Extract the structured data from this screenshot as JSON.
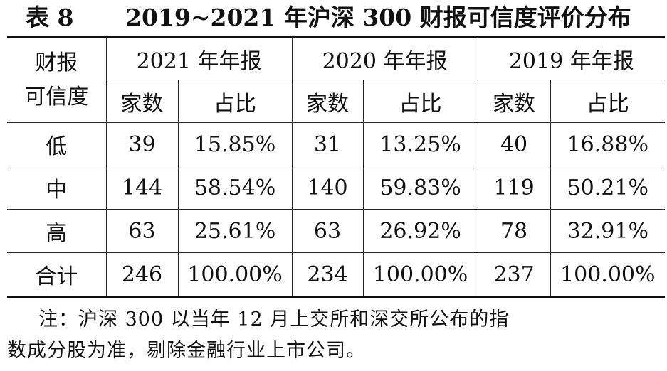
{
  "title": {
    "number": "表 8",
    "text": "2019~2021 年沪深 300 财报可信度评价分布"
  },
  "table": {
    "row_header": [
      "财报",
      "可信度"
    ],
    "year_headers": [
      "2021 年年报",
      "2020 年年报",
      "2019 年年报"
    ],
    "sub_headers": [
      "家数",
      "占比",
      "家数",
      "占比",
      "家数",
      "占比"
    ],
    "rows": [
      {
        "label": "低",
        "cells": [
          "39",
          "15.85%",
          "31",
          "13.25%",
          "40",
          "16.88%"
        ]
      },
      {
        "label": "中",
        "cells": [
          "144",
          "58.54%",
          "140",
          "59.83%",
          "119",
          "50.21%"
        ]
      },
      {
        "label": "高",
        "cells": [
          "63",
          "25.61%",
          "63",
          "26.92%",
          "78",
          "32.91%"
        ]
      },
      {
        "label": "合计",
        "cells": [
          "246",
          "100.00%",
          "234",
          "100.00%",
          "237",
          "100.00%"
        ]
      }
    ]
  },
  "note": {
    "line1": "注：沪深 300 以当年 12 月上交所和深交所公布的指",
    "line2": "数成分股为准，剔除金融行业上市公司。"
  }
}
